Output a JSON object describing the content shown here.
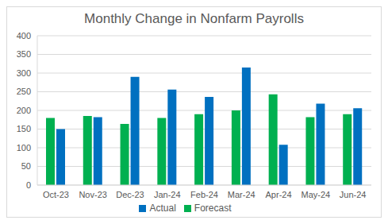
{
  "chart_data": {
    "type": "bar",
    "title": "Monthly Change in Nonfarm Payrolls",
    "categories": [
      "Oct-23",
      "Nov-23",
      "Dec-23",
      "Jan-24",
      "Feb-24",
      "Mar-24",
      "Apr-24",
      "May-24",
      "Jun-24"
    ],
    "series": [
      {
        "name": "Forecast",
        "color": "#00b050",
        "values": [
          180,
          185,
          164,
          180,
          190,
          200,
          243,
          182,
          190
        ]
      },
      {
        "name": "Actual",
        "color": "#0070c0",
        "values": [
          150,
          182,
          290,
          256,
          236,
          315,
          108,
          218,
          206
        ]
      }
    ],
    "ylim": [
      0,
      400
    ],
    "yticks": [
      0,
      50,
      100,
      150,
      200,
      250,
      300,
      350,
      400
    ],
    "grid": true,
    "legend": "bottom"
  }
}
